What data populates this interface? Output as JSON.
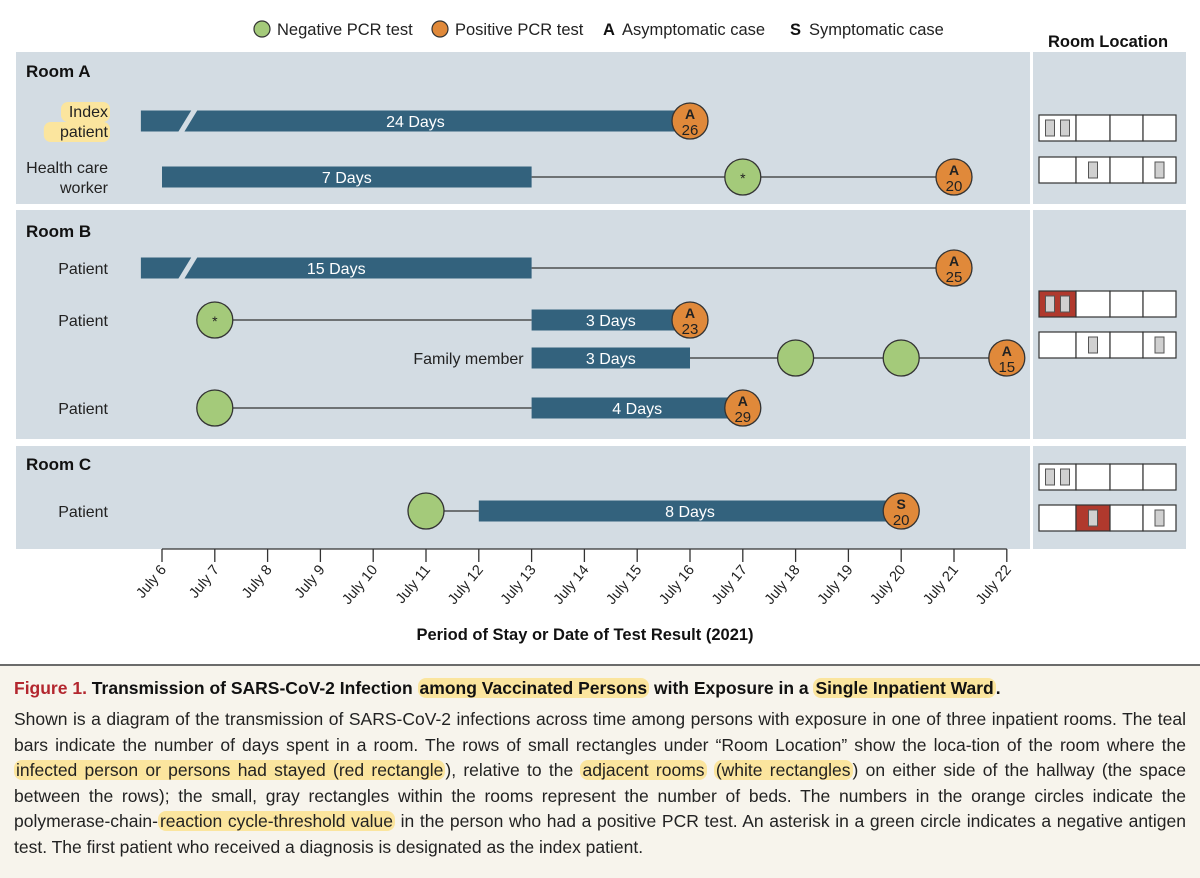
{
  "chart_data": {
    "type": "timeline",
    "legend": [
      {
        "marker": "negative",
        "label": "Negative PCR test"
      },
      {
        "marker": "positive",
        "label": "Positive PCR test"
      },
      {
        "marker": "A",
        "label": "Asymptomatic case"
      },
      {
        "marker": "S",
        "label": "Symptomatic case"
      }
    ],
    "legend_position": "top",
    "room_location_title": "Room Location",
    "xlabel": "Period of Stay or Date of Test Result (2021)",
    "x_ticks": [
      "July 6",
      "July 7",
      "July 8",
      "July 9",
      "July 10",
      "July 11",
      "July 12",
      "July 13",
      "July 14",
      "July 15",
      "July 16",
      "July 17",
      "July 18",
      "July 19",
      "July 20",
      "July 21",
      "July 22"
    ],
    "x_range": [
      "July 6",
      "July 22"
    ],
    "colors": {
      "panel": "#d3dce3",
      "bar": "#33627d",
      "negative": "#a4ca7a",
      "positive": "#e0893a",
      "room_infected": "#b0392d",
      "bed": "#d0d0d0"
    },
    "rooms": [
      {
        "name": "Room A",
        "rows": [
          {
            "label": [
              "Index",
              "patient"
            ],
            "label_highlight": true,
            "line_end": 16,
            "bars": [
              {
                "start": 5.6,
                "end": 16,
                "text": "24 Days",
                "break": true
              }
            ],
            "markers": [
              {
                "day": 16,
                "kind": "positive",
                "letter": "A",
                "ct": "26"
              }
            ]
          },
          {
            "label": [
              "Health care",
              "worker"
            ],
            "line_end": 21,
            "bars": [
              {
                "start": 6,
                "end": 13,
                "text": "7 Days"
              }
            ],
            "markers": [
              {
                "day": 17,
                "kind": "negative",
                "asterisk": "*"
              },
              {
                "day": 21,
                "kind": "positive",
                "letter": "A",
                "ct": "20"
              }
            ]
          }
        ],
        "location": [
          {
            "infected": [],
            "beds": [
              [
                2
              ]
            ]
          },
          {
            "infected": [
              4
            ],
            "beds": [
              [],
              [
                1
              ],
              [],
              [
                1
              ]
            ]
          }
        ]
      },
      {
        "name": "Room B",
        "rows": [
          {
            "label": [
              "Patient"
            ],
            "line_end": 21,
            "bars": [
              {
                "start": 5.6,
                "end": 13,
                "text": "15 Days",
                "break": true
              }
            ],
            "markers": [
              {
                "day": 21,
                "kind": "positive",
                "letter": "A",
                "ct": "25"
              }
            ]
          },
          {
            "label": [
              "Patient"
            ],
            "line_start": 7,
            "line_end": 13,
            "bars": [
              {
                "start": 13,
                "end": 16,
                "text": "3 Days"
              }
            ],
            "markers": [
              {
                "day": 7,
                "kind": "negative",
                "asterisk": "*"
              },
              {
                "day": 16,
                "kind": "positive",
                "letter": "A",
                "ct": "23"
              }
            ]
          },
          {
            "label": [
              "Family member"
            ],
            "inline_label": true,
            "line_start": 16,
            "line_end": 22,
            "bars": [
              {
                "start": 13,
                "end": 16,
                "text": "3 Days"
              }
            ],
            "markers": [
              {
                "day": 18,
                "kind": "negative"
              },
              {
                "day": 20,
                "kind": "negative"
              },
              {
                "day": 22,
                "kind": "positive",
                "letter": "A",
                "ct": "15"
              }
            ]
          },
          {
            "label": [
              "Patient"
            ],
            "line_start": 7,
            "line_end": 13,
            "bars": [
              {
                "start": 13,
                "end": 17,
                "text": "4 Days"
              }
            ],
            "markers": [
              {
                "day": 7,
                "kind": "negative"
              },
              {
                "day": 17,
                "kind": "positive",
                "letter": "A",
                "ct": "29"
              }
            ]
          }
        ],
        "location": [
          {
            "infected": [
              0
            ],
            "beds": [
              [
                2
              ]
            ]
          },
          {
            "infected": [],
            "beds": [
              [],
              [
                1
              ],
              [],
              [
                1
              ]
            ]
          }
        ]
      },
      {
        "name": "Room C",
        "rows": [
          {
            "label": [
              "Patient"
            ],
            "line_start": 11,
            "line_end": 12,
            "bars": [
              {
                "start": 12,
                "end": 20,
                "text": "8 Days"
              }
            ],
            "markers": [
              {
                "day": 11,
                "kind": "negative"
              },
              {
                "day": 20,
                "kind": "positive",
                "letter": "S",
                "ct": "20"
              }
            ]
          }
        ],
        "location": [
          {
            "infected": [],
            "beds": [
              [
                2
              ]
            ]
          },
          {
            "infected": [
              1
            ],
            "beds": [
              [],
              [
                1
              ],
              [],
              [
                1
              ]
            ]
          }
        ]
      }
    ]
  },
  "caption": {
    "figure": "Figure 1.",
    "title_parts": [
      {
        "text": " Transmission of SARS-CoV-2 Infection "
      },
      {
        "text": "among Vaccinated Persons",
        "hl": true
      },
      {
        "text": " with Exposure in a "
      },
      {
        "text": "Single Inpatient Ward",
        "hl": true
      },
      {
        "text": "."
      }
    ],
    "body_parts": [
      {
        "text": "Shown is a diagram of the transmission of SARS-CoV-2 infections across time among persons with exposure in one of three inpatient rooms. The teal bars indicate the number of days spent in a room. The rows of small rectangles under “Room Location” show the loca-tion of the room where the "
      },
      {
        "text": "infected person or persons had stayed (red rectangle",
        "hl": true
      },
      {
        "text": "), relative to the "
      },
      {
        "text": "adjacent rooms",
        "hl": true
      },
      {
        "text": " "
      },
      {
        "text": "(white rectangles",
        "hl": true
      },
      {
        "text": ") on either side of the hallway (the space between the rows); the small, gray rectangles within the rooms represent the number of beds. The numbers in the orange circles indicate the polymerase-chain-"
      },
      {
        "text": "reaction cycle-threshold value",
        "hl": true
      },
      {
        "text": " in the person who had a positive PCR test. An asterisk in a green circle indicates a negative antigen test. The first patient who received a diagnosis is designated as the index patient."
      }
    ]
  }
}
